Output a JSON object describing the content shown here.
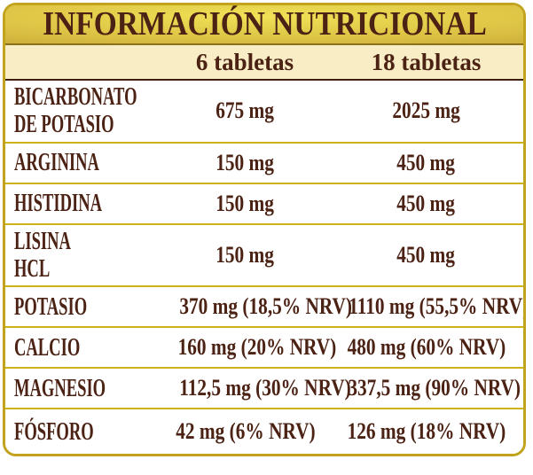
{
  "panel": {
    "title": "INFORMACIÓN NUTRICIONAL",
    "columns": [
      "6 tabletas",
      "18 tabletas"
    ],
    "rows": [
      {
        "name": "BICARBONATO\nDE POTASIO",
        "per_6": "675 mg",
        "per_18": "2025 mg"
      },
      {
        "name": "ARGININA",
        "per_6": "150 mg",
        "per_18": "450 mg"
      },
      {
        "name": "HISTIDINA",
        "per_6": "150 mg",
        "per_18": "450 mg"
      },
      {
        "name": "LISINA HCL",
        "per_6": "150 mg",
        "per_18": "450 mg"
      },
      {
        "name": "POTASIO",
        "per_6": "370 mg (18,5% NRV)",
        "per_18": "1110 mg (55,5% NRV)"
      },
      {
        "name": "CALCIO",
        "per_6": "160 mg (20% NRV)",
        "per_18": "480 mg (60% NRV)"
      },
      {
        "name": "MAGNESIO",
        "per_6": "112,5 mg (30% NRV)",
        "per_18": "337,5 mg (90% NRV)"
      },
      {
        "name": "FÓSFORO",
        "per_6": "42 mg (6% NRV)",
        "per_18": "126 mg (18% NRV)"
      }
    ]
  },
  "colors": {
    "text": "#4b2213",
    "gold_border": "#c2a31d",
    "gold_line": "#cfb118",
    "cream": "#f9edc6",
    "band_bright": "#f1e257",
    "band_mid": "#ddc445",
    "band_dark": "#8d701d",
    "dark_line": "#40210f",
    "page_bg": "#ffffff"
  }
}
